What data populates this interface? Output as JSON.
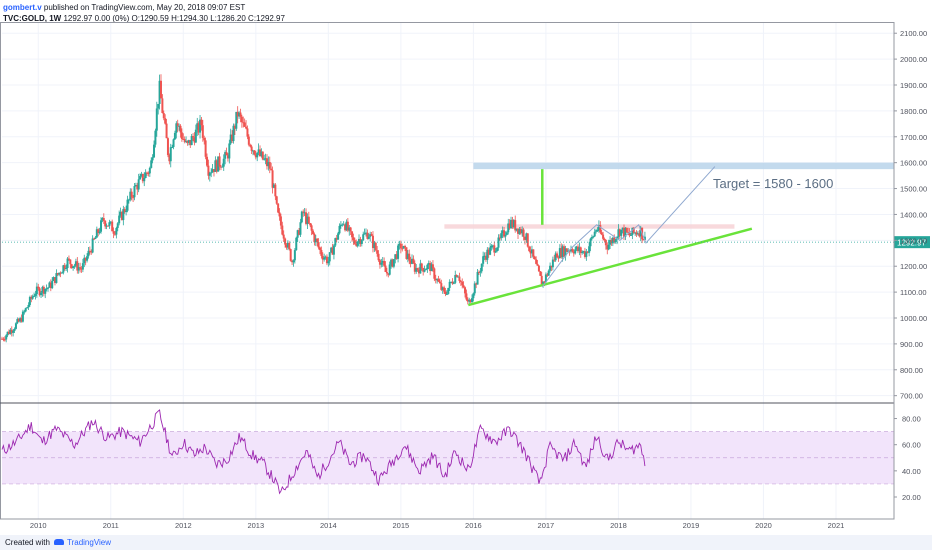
{
  "header": {
    "author": "gombert.v",
    "published": "published on TradingView.com, May 20, 2018 09:07 EST",
    "symbol": "TVC:GOLD, 1W",
    "ohlc": "1292.97 0.00 (0%) O:1290.59 H:1294.30 L:1286.20 C:1292.97"
  },
  "footer": {
    "created_with": "Created with",
    "brand": "TradingView"
  },
  "colors": {
    "up": "#26a69a",
    "down": "#ef5350",
    "trendline": "#69e33a",
    "target_zone": "#b8d4ea",
    "resistance_zone": "#f7d2d6",
    "rsi_line": "#9c27b0",
    "rsi_band": "#f2e4fb",
    "projection": "#8fa8cf",
    "price_label_bg": "#26a69a"
  },
  "chart_data": [
    {
      "type": "candlestick",
      "timeframe": "1W",
      "symbol": "TVC:GOLD",
      "last_price_label": "1292.97",
      "ylim": [
        650,
        2120
      ],
      "y_ticks": [
        "700.00",
        "800.00",
        "900.00",
        "1000.00",
        "1100.00",
        "1200.00",
        "1300.00",
        "1400.00",
        "1500.00",
        "1600.00",
        "1700.00",
        "1800.00",
        "1900.00",
        "2000.00",
        "2100.00"
      ],
      "xlim": [
        2009.5,
        2021.8
      ],
      "x_ticks": [
        "2010",
        "2011",
        "2012",
        "2013",
        "2014",
        "2015",
        "2016",
        "2017",
        "2018",
        "2019",
        "2020",
        "2021"
      ],
      "annotations": [
        {
          "type": "text",
          "label": "Target = 1580 - 1600"
        },
        {
          "type": "zone",
          "name": "target",
          "y": [
            1575,
            1600
          ],
          "x": [
            2016.0,
            2021.8
          ]
        },
        {
          "type": "zone",
          "name": "resistance",
          "y": [
            1345,
            1362
          ],
          "x": [
            2015.6,
            2019.6
          ]
        },
        {
          "type": "trendline",
          "points": [
            [
              2015.93,
              1050
            ],
            [
              2019.84,
              1345
            ]
          ]
        },
        {
          "type": "vertical",
          "x": 2016.95,
          "y": [
            1360,
            1575
          ]
        },
        {
          "type": "projection",
          "points": [
            [
              2016.95,
              1120
            ],
            [
              2017.35,
              1270
            ],
            [
              2017.7,
              1360
            ],
            [
              2018.02,
              1300
            ],
            [
              2018.28,
              1360
            ],
            [
              2018.38,
              1290
            ],
            [
              2019.33,
              1585
            ]
          ]
        }
      ],
      "price_path": [
        [
          2009.5,
          920
        ],
        [
          2009.75,
          990
        ],
        [
          2009.95,
          1100
        ],
        [
          2010.15,
          1120
        ],
        [
          2010.4,
          1220
        ],
        [
          2010.6,
          1190
        ],
        [
          2010.9,
          1380
        ],
        [
          2011.05,
          1340
        ],
        [
          2011.35,
          1510
        ],
        [
          2011.55,
          1580
        ],
        [
          2011.67,
          1890
        ],
        [
          2011.8,
          1620
        ],
        [
          2011.9,
          1760
        ],
        [
          2012.05,
          1660
        ],
        [
          2012.25,
          1750
        ],
        [
          2012.35,
          1570
        ],
        [
          2012.6,
          1620
        ],
        [
          2012.75,
          1790
        ],
        [
          2012.95,
          1660
        ],
        [
          2013.2,
          1580
        ],
        [
          2013.3,
          1400
        ],
        [
          2013.5,
          1220
        ],
        [
          2013.65,
          1410
        ],
        [
          2013.9,
          1250
        ],
        [
          2014.0,
          1220
        ],
        [
          2014.2,
          1380
        ],
        [
          2014.35,
          1290
        ],
        [
          2014.55,
          1330
        ],
        [
          2014.8,
          1170
        ],
        [
          2015.0,
          1280
        ],
        [
          2015.2,
          1190
        ],
        [
          2015.4,
          1200
        ],
        [
          2015.6,
          1090
        ],
        [
          2015.78,
          1180
        ],
        [
          2015.93,
          1050
        ],
        [
          2016.15,
          1240
        ],
        [
          2016.35,
          1290
        ],
        [
          2016.5,
          1370
        ],
        [
          2016.7,
          1330
        ],
        [
          2016.95,
          1130
        ],
        [
          2017.15,
          1250
        ],
        [
          2017.35,
          1270
        ],
        [
          2017.55,
          1250
        ],
        [
          2017.7,
          1350
        ],
        [
          2017.85,
          1280
        ],
        [
          2018.02,
          1340
        ],
        [
          2018.15,
          1320
        ],
        [
          2018.3,
          1340
        ],
        [
          2018.38,
          1293
        ]
      ]
    },
    {
      "type": "line",
      "name": "RSI",
      "ylim": [
        0,
        90
      ],
      "y_ticks": [
        "20.00",
        "40.00",
        "60.00",
        "80.00"
      ],
      "band": [
        30,
        70
      ],
      "midline": 50,
      "path": [
        [
          2009.5,
          55
        ],
        [
          2009.7,
          62
        ],
        [
          2009.9,
          75
        ],
        [
          2010.05,
          62
        ],
        [
          2010.25,
          72
        ],
        [
          2010.5,
          60
        ],
        [
          2010.75,
          78
        ],
        [
          2010.95,
          65
        ],
        [
          2011.15,
          70
        ],
        [
          2011.4,
          62
        ],
        [
          2011.6,
          78
        ],
        [
          2011.67,
          84
        ],
        [
          2011.85,
          50
        ],
        [
          2012.0,
          62
        ],
        [
          2012.15,
          52
        ],
        [
          2012.3,
          58
        ],
        [
          2012.45,
          45
        ],
        [
          2012.6,
          48
        ],
        [
          2012.78,
          66
        ],
        [
          2012.95,
          52
        ],
        [
          2013.1,
          46
        ],
        [
          2013.25,
          33
        ],
        [
          2013.35,
          22
        ],
        [
          2013.55,
          42
        ],
        [
          2013.7,
          55
        ],
        [
          2013.85,
          35
        ],
        [
          2014.0,
          48
        ],
        [
          2014.15,
          62
        ],
        [
          2014.3,
          45
        ],
        [
          2014.5,
          52
        ],
        [
          2014.7,
          33
        ],
        [
          2014.9,
          48
        ],
        [
          2015.05,
          60
        ],
        [
          2015.25,
          40
        ],
        [
          2015.45,
          52
        ],
        [
          2015.6,
          35
        ],
        [
          2015.75,
          55
        ],
        [
          2015.93,
          40
        ],
        [
          2016.1,
          72
        ],
        [
          2016.3,
          62
        ],
        [
          2016.5,
          72
        ],
        [
          2016.7,
          55
        ],
        [
          2016.92,
          30
        ],
        [
          2017.05,
          58
        ],
        [
          2017.25,
          48
        ],
        [
          2017.4,
          62
        ],
        [
          2017.55,
          42
        ],
        [
          2017.7,
          67
        ],
        [
          2017.85,
          48
        ],
        [
          2018.0,
          62
        ],
        [
          2018.15,
          55
        ],
        [
          2018.3,
          60
        ],
        [
          2018.38,
          45
        ]
      ]
    }
  ]
}
